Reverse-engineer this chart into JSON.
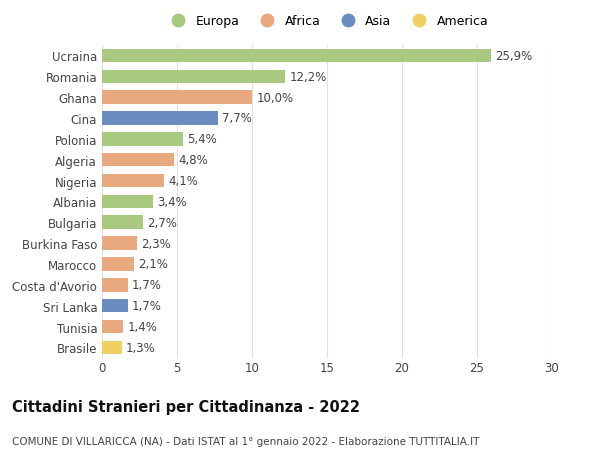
{
  "categories": [
    "Brasile",
    "Tunisia",
    "Sri Lanka",
    "Costa d'Avorio",
    "Marocco",
    "Burkina Faso",
    "Bulgaria",
    "Albania",
    "Nigeria",
    "Algeria",
    "Polonia",
    "Cina",
    "Ghana",
    "Romania",
    "Ucraina"
  ],
  "values": [
    1.3,
    1.4,
    1.7,
    1.7,
    2.1,
    2.3,
    2.7,
    3.4,
    4.1,
    4.8,
    5.4,
    7.7,
    10.0,
    12.2,
    25.9
  ],
  "labels": [
    "1,3%",
    "1,4%",
    "1,7%",
    "1,7%",
    "2,1%",
    "2,3%",
    "2,7%",
    "3,4%",
    "4,1%",
    "4,8%",
    "5,4%",
    "7,7%",
    "10,0%",
    "12,2%",
    "25,9%"
  ],
  "continents": [
    "America",
    "Africa",
    "Asia",
    "Africa",
    "Africa",
    "Africa",
    "Europa",
    "Europa",
    "Africa",
    "Africa",
    "Europa",
    "Asia",
    "Africa",
    "Europa",
    "Europa"
  ],
  "continent_colors": {
    "Europa": "#a8c97f",
    "Africa": "#e8a97e",
    "Asia": "#6b8cbf",
    "America": "#f0d060"
  },
  "legend_order": [
    "Europa",
    "Africa",
    "Asia",
    "America"
  ],
  "title": "Cittadini Stranieri per Cittadinanza - 2022",
  "subtitle": "COMUNE DI VILLARICCA (NA) - Dati ISTAT al 1° gennaio 2022 - Elaborazione TUTTITALIA.IT",
  "xlim": [
    0,
    30
  ],
  "xticks": [
    0,
    5,
    10,
    15,
    20,
    25,
    30
  ],
  "background_color": "#ffffff",
  "grid_color": "#e0e0e0",
  "bar_height": 0.65,
  "label_fontsize": 8.5,
  "tick_fontsize": 8.5,
  "title_fontsize": 10.5,
  "subtitle_fontsize": 7.5
}
